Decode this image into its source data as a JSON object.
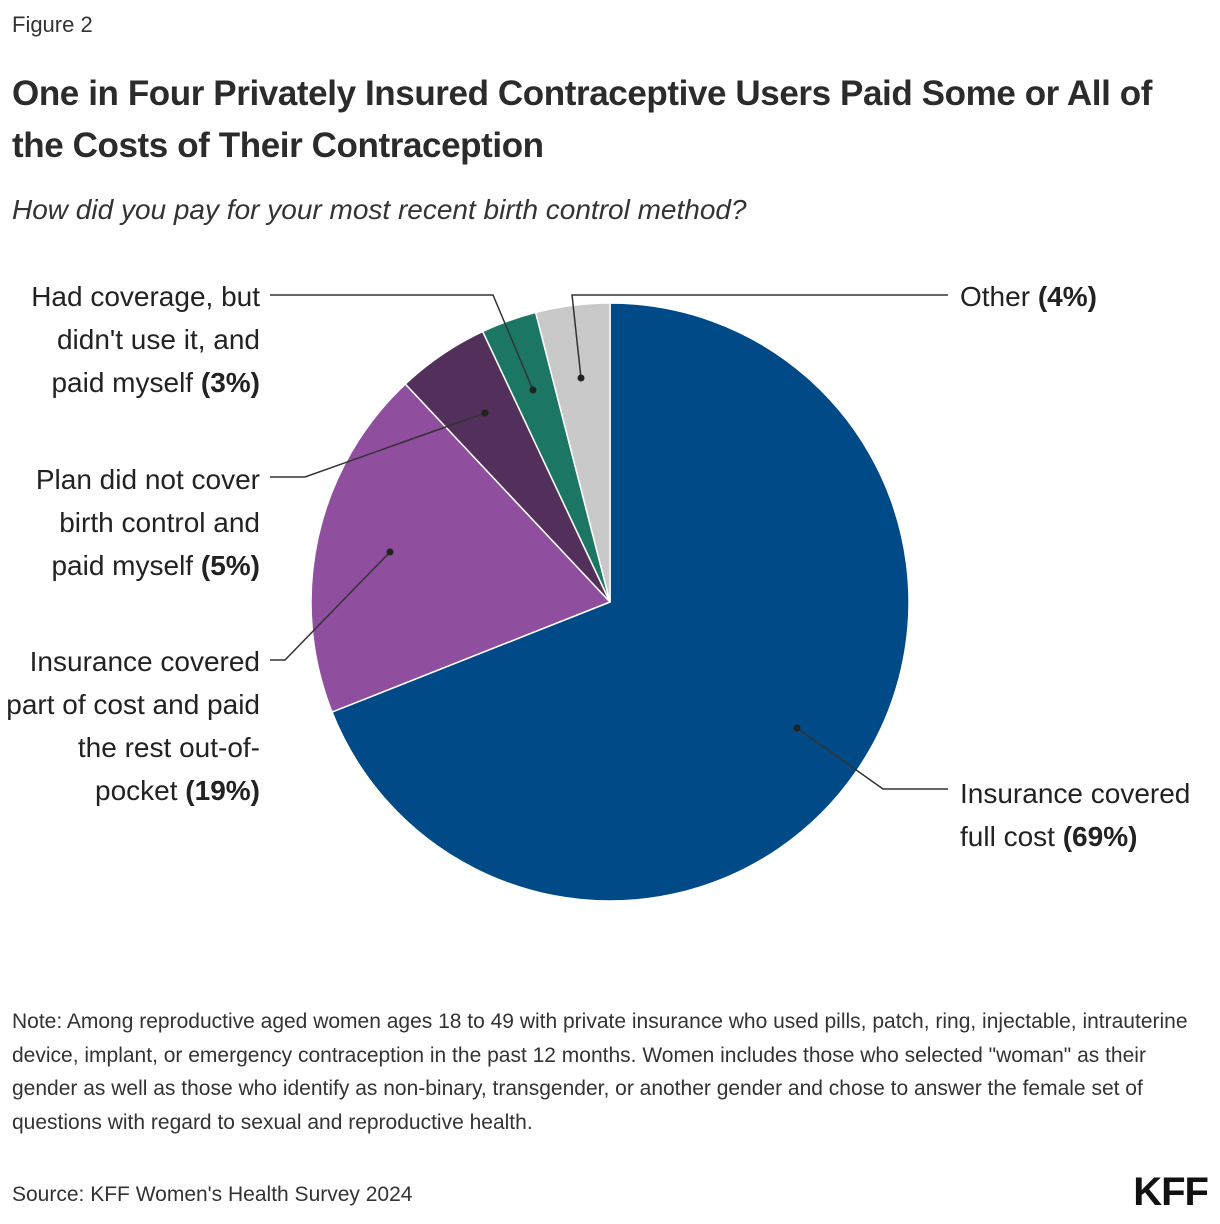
{
  "chart_data": {
    "type": "pie",
    "figure_label": "Figure 2",
    "title": "One in Four Privately Insured Contraceptive Users Paid Some or All of the Costs of Their Contraception",
    "subtitle": "How did you pay for your most recent birth control method?",
    "categories": [
      "Insurance covered full cost",
      "Insurance covered part of cost and paid the rest out-of-pocket",
      "Plan did not cover birth control and paid myself",
      "Had coverage, but didn't use it, and paid myself",
      "Other"
    ],
    "values": [
      69,
      19,
      5,
      3,
      4
    ],
    "value_labels": [
      "(69%)",
      "(19%)",
      "(5%)",
      "(3%)",
      "(4%)"
    ],
    "colors": [
      "#004a87",
      "#8f4f9e",
      "#532f5c",
      "#1b7763",
      "#c9c9c9"
    ],
    "note": "Note: Among reproductive aged women ages 18 to 49 with private insurance who used pills, patch, ring, injectable, intrauterine device, implant, or emergency contraception in the past 12 months. Women includes those who selected \"woman\" as their gender as well as those who identify as non-binary, transgender, or another gender and chose to answer the female set of questions with regard to sexual and reproductive health.",
    "source": "Source: KFF Women's Health Survey 2024",
    "logo": "KFF"
  }
}
